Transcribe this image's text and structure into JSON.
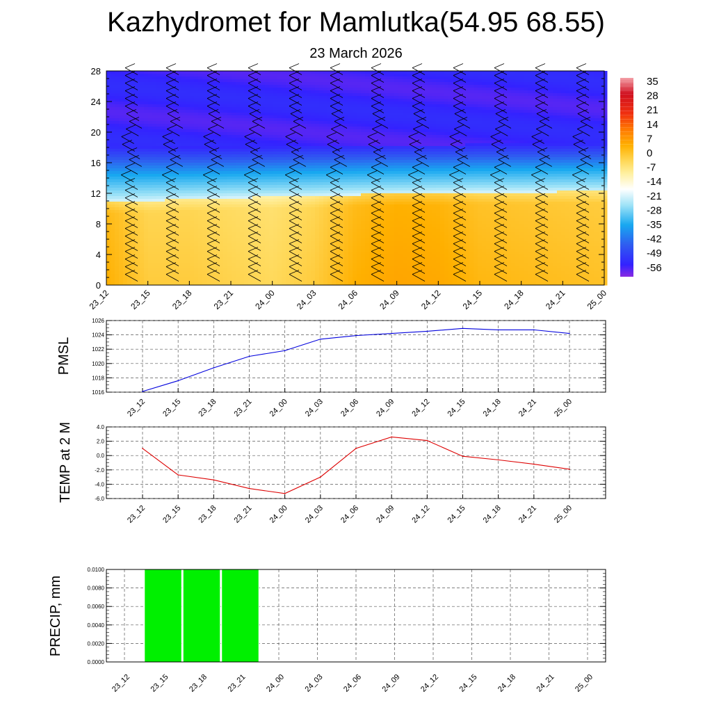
{
  "header": {
    "title": "Kazhydromet for Mamlutka(54.95 68.55)",
    "subtitle": "23 March 2026"
  },
  "colors": {
    "wind_barb": "#000000",
    "pmsl_line": "#0000dd",
    "temp_line": "#dd0000",
    "precip_bar": "#00f000",
    "grid": "#555555"
  },
  "chart_data": [
    {
      "type": "heatmap",
      "name": "cross-section",
      "categories": [
        "23_12",
        "23_15",
        "23_18",
        "23_21",
        "24_00",
        "24_03",
        "24_06",
        "24_09",
        "24_12",
        "24_15",
        "24_18",
        "24_21",
        "25_00"
      ],
      "y_ticks": [
        "0",
        "4",
        "8",
        "12",
        "16",
        "20",
        "24",
        "28"
      ],
      "ylim": [
        0,
        28
      ],
      "colorbar": {
        "labels": [
          "35",
          "28",
          "21",
          "14",
          "7",
          "0",
          "-7",
          "-14",
          "-21",
          "-28",
          "-35",
          "-42",
          "-49",
          "-56"
        ],
        "range": [
          -60,
          38
        ]
      },
      "layers": {
        "warm_top_y": [
          10.9,
          11.0,
          11.2,
          11.4,
          11.5,
          11.6,
          11.8,
          11.9,
          12.0,
          12.1,
          12.1,
          12.2,
          12.2
        ],
        "tropopause_y": [
          18.2,
          18.1,
          18.0,
          18.0,
          18.1,
          18.2,
          18.2,
          18.3,
          18.3,
          18.4,
          18.4,
          18.4,
          18.5
        ],
        "surface_temp": [
          1,
          -3,
          -3,
          -4,
          -5,
          -3,
          1,
          2.5,
          2,
          0,
          -0.5,
          -1,
          -1.5
        ],
        "upper_temp": -55
      },
      "wind_barbs": "profile at each time step, every 1 km"
    },
    {
      "type": "line",
      "name": "pmsl",
      "ylabel": "PMSL",
      "categories": [
        "23_12",
        "23_15",
        "23_18",
        "23_21",
        "24_00",
        "24_03",
        "24_06",
        "24_09",
        "24_12",
        "24_15",
        "24_18",
        "24_21",
        "25_00"
      ],
      "values": [
        1016.1,
        1017.6,
        1019.4,
        1021.0,
        1021.8,
        1023.4,
        1023.9,
        1024.2,
        1024.5,
        1024.9,
        1024.7,
        1024.7,
        1024.2
      ],
      "ylim": [
        1016,
        1026
      ],
      "y_ticks": [
        "1016",
        "1018",
        "1020",
        "1022",
        "1024",
        "1026"
      ]
    },
    {
      "type": "line",
      "name": "temp",
      "ylabel": "TEMP at 2 M",
      "categories": [
        "23_12",
        "23_15",
        "23_18",
        "23_21",
        "24_00",
        "24_03",
        "24_06",
        "24_09",
        "24_12",
        "24_15",
        "24_18",
        "24_21",
        "25_00"
      ],
      "values": [
        1.0,
        -2.7,
        -3.4,
        -4.6,
        -5.3,
        -3.0,
        1.0,
        2.6,
        2.1,
        -0.1,
        -0.6,
        -1.2,
        -1.9
      ],
      "ylim": [
        -6,
        4
      ],
      "y_ticks": [
        "-6.0",
        "-4.0",
        "-2.0",
        "0.0",
        "2.0",
        "4.0"
      ]
    },
    {
      "type": "bar",
      "name": "precip",
      "ylabel": "PRECIP, mm",
      "categories": [
        "23_12",
        "23_15",
        "23_18",
        "23_21",
        "24_00",
        "24_03",
        "24_06",
        "24_09",
        "24_12",
        "24_15",
        "24_18",
        "24_21",
        "25_00"
      ],
      "values": [
        0,
        0.01,
        0.01,
        0.01,
        0,
        0,
        0,
        0,
        0,
        0,
        0,
        0,
        0
      ],
      "ylim": [
        0,
        0.01
      ],
      "y_ticks": [
        "0.0000",
        "0.0020",
        "0.0040",
        "0.0060",
        "0.0080",
        "0.0100"
      ]
    }
  ]
}
